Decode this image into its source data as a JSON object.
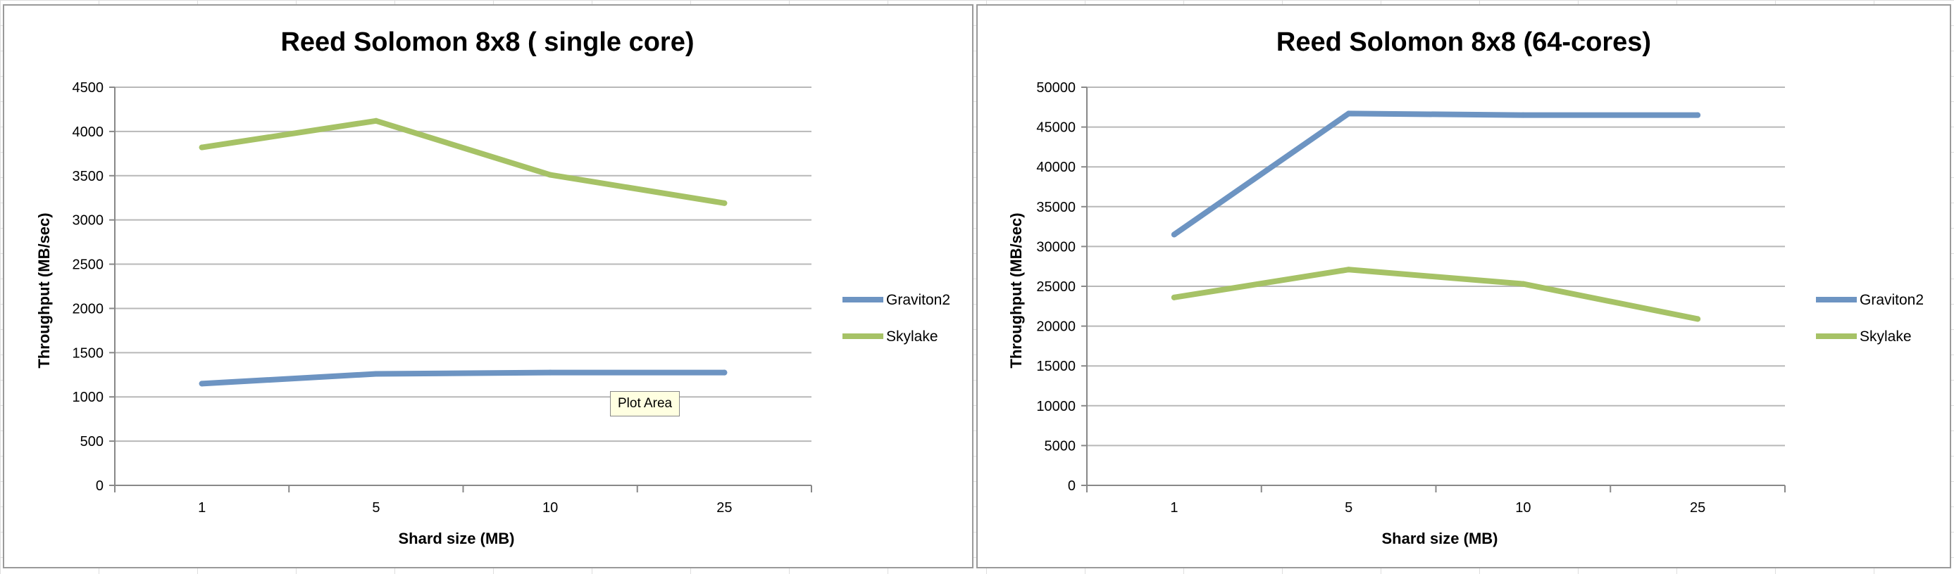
{
  "tooltip": "Plot Area",
  "colors": {
    "graviton2": "#6d94c2",
    "skylake": "#a6c266",
    "gridline": "#b8b8b8",
    "axis": "#888888"
  },
  "chart_data": [
    {
      "type": "line",
      "title": "Reed Solomon 8x8 ( single core)",
      "xlabel": "Shard size (MB)",
      "ylabel": "Throughput (MB/sec)",
      "categories": [
        "1",
        "5",
        "10",
        "25"
      ],
      "ylim": [
        0,
        4500
      ],
      "yticks": [
        0,
        500,
        1000,
        1500,
        2000,
        2500,
        3000,
        3500,
        4000,
        4500
      ],
      "grid": true,
      "legend": "right",
      "series": [
        {
          "name": "Graviton2",
          "color": "#6d94c2",
          "values": [
            1150,
            1260,
            1275,
            1275
          ]
        },
        {
          "name": "Skylake",
          "color": "#a6c266",
          "values": [
            3820,
            4120,
            3510,
            3190
          ]
        }
      ]
    },
    {
      "type": "line",
      "title": "Reed Solomon 8x8 (64-cores)",
      "xlabel": "Shard size (MB)",
      "ylabel": "Throughput (MB/sec)",
      "categories": [
        "1",
        "5",
        "10",
        "25"
      ],
      "ylim": [
        0,
        50000
      ],
      "yticks": [
        0,
        5000,
        10000,
        15000,
        20000,
        25000,
        30000,
        35000,
        40000,
        45000,
        50000
      ],
      "grid": true,
      "legend": "right",
      "series": [
        {
          "name": "Graviton2",
          "color": "#6d94c2",
          "values": [
            31500,
            46700,
            46500,
            46500
          ]
        },
        {
          "name": "Skylake",
          "color": "#a6c266",
          "values": [
            23600,
            27100,
            25300,
            20900
          ]
        }
      ]
    }
  ]
}
